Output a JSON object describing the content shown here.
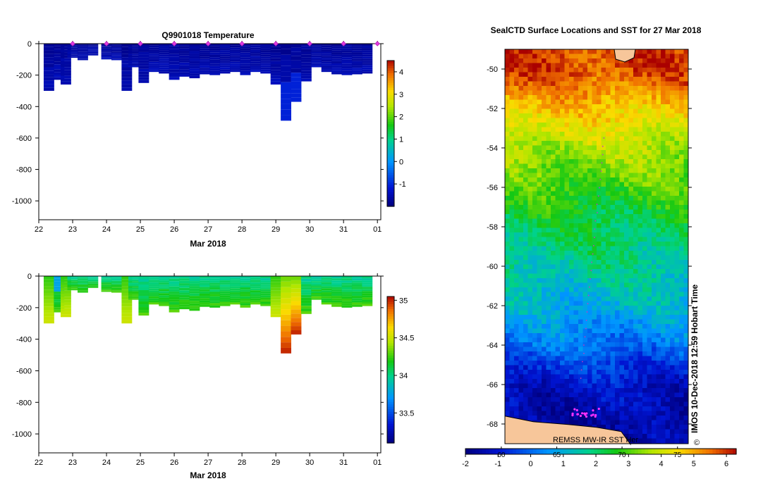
{
  "chart_data": [
    {
      "type": "heatmap",
      "title": "Q9901018  Temperature",
      "xlabel": "Mar 2018",
      "ylabel": "",
      "x_ticks": [
        "22",
        "23",
        "24",
        "25",
        "26",
        "27",
        "28",
        "29",
        "30",
        "31",
        "01"
      ],
      "y_ticks": [
        "0",
        "-200",
        "-400",
        "-600",
        "-800",
        "-1000"
      ],
      "ylim": [
        -1120,
        0
      ],
      "xlim": [
        22,
        32.1
      ],
      "colorbar": {
        "min": -2,
        "max": 4.5,
        "ticks": [
          "-1",
          "0",
          "1",
          "2",
          "3",
          "4"
        ],
        "tick_values": [
          -1,
          0,
          1,
          2,
          3,
          4
        ]
      },
      "profile_bottoms": [
        {
          "day": 22.3,
          "depth": -300
        },
        {
          "day": 22.6,
          "depth": -230
        },
        {
          "day": 22.8,
          "depth": -260
        },
        {
          "day": 23.0,
          "depth": -90
        },
        {
          "day": 23.3,
          "depth": -105
        },
        {
          "day": 23.6,
          "depth": -75
        },
        {
          "day": 24.0,
          "depth": -100
        },
        {
          "day": 24.3,
          "depth": -105
        },
        {
          "day": 24.6,
          "depth": -300
        },
        {
          "day": 24.8,
          "depth": -150
        },
        {
          "day": 25.1,
          "depth": -250
        },
        {
          "day": 25.4,
          "depth": -180
        },
        {
          "day": 25.7,
          "depth": -190
        },
        {
          "day": 26.0,
          "depth": -230
        },
        {
          "day": 26.3,
          "depth": -210
        },
        {
          "day": 26.6,
          "depth": -220
        },
        {
          "day": 26.9,
          "depth": -195
        },
        {
          "day": 27.2,
          "depth": -200
        },
        {
          "day": 27.5,
          "depth": -190
        },
        {
          "day": 27.8,
          "depth": -180
        },
        {
          "day": 28.1,
          "depth": -200
        },
        {
          "day": 28.4,
          "depth": -180
        },
        {
          "day": 28.7,
          "depth": -190
        },
        {
          "day": 29.0,
          "depth": -260
        },
        {
          "day": 29.3,
          "depth": -490
        },
        {
          "day": 29.6,
          "depth": -370
        },
        {
          "day": 29.9,
          "depth": -240
        },
        {
          "day": 30.2,
          "depth": -150
        },
        {
          "day": 30.5,
          "depth": -180
        },
        {
          "day": 30.8,
          "depth": -195
        },
        {
          "day": 31.1,
          "depth": -200
        },
        {
          "day": 31.4,
          "depth": -195
        },
        {
          "day": 31.7,
          "depth": -190
        }
      ],
      "surface_markers": [
        23.0,
        24.0,
        25.0,
        26.0,
        27.0,
        28.0,
        29.0,
        30.0,
        31.0,
        32.0
      ]
    },
    {
      "type": "heatmap",
      "title": "",
      "xlabel": "Mar 2018",
      "ylabel": "",
      "x_ticks": [
        "22",
        "23",
        "24",
        "25",
        "26",
        "27",
        "28",
        "29",
        "30",
        "31",
        "01"
      ],
      "y_ticks": [
        "0",
        "-200",
        "-400",
        "-600",
        "-800",
        "-1000"
      ],
      "ylim": [
        -1120,
        0
      ],
      "xlim": [
        22,
        32.1
      ],
      "colorbar": {
        "min": 33.1,
        "max": 35.05,
        "ticks": [
          "33.5",
          "34",
          "34.5",
          "35"
        ],
        "tick_values": [
          33.5,
          34,
          34.5,
          35
        ]
      }
    },
    {
      "type": "heatmap",
      "title": "SealCTD Surface Locations and SST for 27 Mar 2018",
      "xlabel": "",
      "ylabel": "",
      "y_ticks": [
        "-50",
        "-52",
        "-54",
        "-56",
        "-58",
        "-60",
        "-62",
        "-64",
        "-66",
        "-68"
      ],
      "y_tick_values": [
        -50,
        -52,
        -54,
        -56,
        -58,
        -60,
        -62,
        -64,
        -66,
        -68
      ],
      "ylim": [
        -69,
        -49
      ],
      "sst_bands": [
        {
          "lat": -50,
          "sst": 5.8
        },
        {
          "lat": -52,
          "sst": 4.6
        },
        {
          "lat": -54,
          "sst": 3.6
        },
        {
          "lat": -56,
          "sst": 2.8
        },
        {
          "lat": -58,
          "sst": 2.1
        },
        {
          "lat": -60,
          "sst": 1.6
        },
        {
          "lat": -62,
          "sst": 0.9
        },
        {
          "lat": -64,
          "sst": 0.0
        },
        {
          "lat": -66,
          "sst": -1.2
        },
        {
          "lat": -68,
          "sst": -1.6
        }
      ],
      "colorbar": {
        "min": -2,
        "max": 6.3,
        "ticks": [
          "-2",
          "-1",
          "0",
          "1",
          "2",
          "3",
          "4",
          "5",
          "6"
        ],
        "tick_values": [
          -2,
          -1,
          0,
          1,
          2,
          3,
          4,
          5,
          6
        ],
        "secondary_ticks": [
          "60",
          "65",
          "70",
          "75"
        ],
        "secondary_tick_values": [
          -0.9,
          0.8,
          2.8,
          4.5
        ]
      },
      "land_label": "REMSS MW-IR SST Her",
      "timestamp": "IMOS 10-Dec-2018 12:59 Hobart Time",
      "copyright": "©"
    }
  ]
}
